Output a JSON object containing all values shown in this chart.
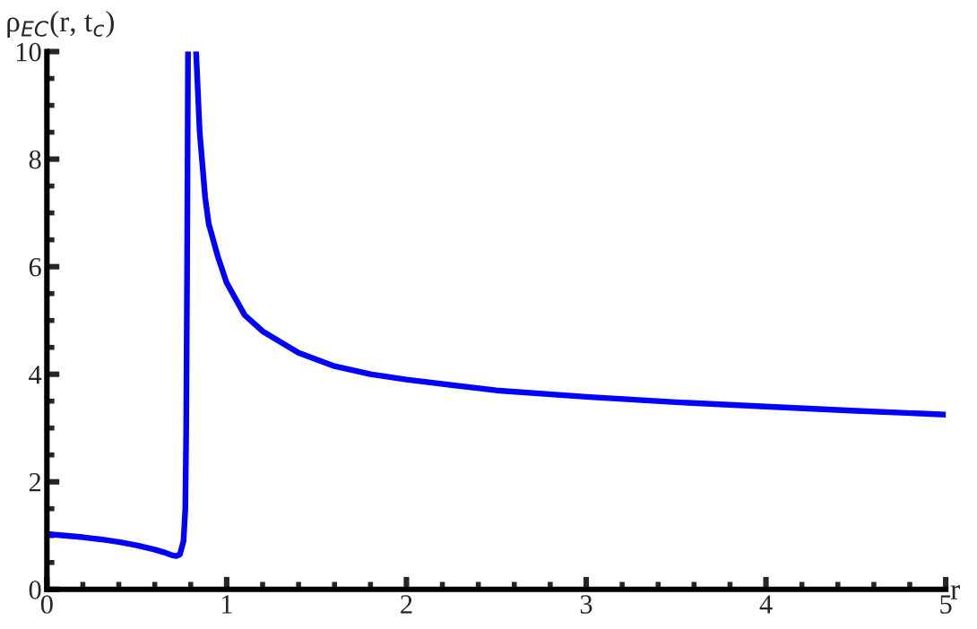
{
  "chart_data": {
    "type": "line",
    "ylabel": "ρ$_{EC}$(r, t$_{c}$)",
    "xlabel": "r",
    "x": [
      0,
      0.1,
      0.2,
      0.3,
      0.4,
      0.5,
      0.6,
      0.65,
      0.7,
      0.72,
      0.74,
      0.76,
      0.77,
      0.775,
      0.78,
      0.785,
      0.81,
      0.83,
      0.85,
      0.88,
      0.9,
      0.95,
      1.0,
      1.1,
      1.2,
      1.4,
      1.6,
      1.8,
      2,
      2.5,
      3,
      3.5,
      4,
      4.5,
      5
    ],
    "series": [
      {
        "color": "#0000ff",
        "values": [
          1.03,
          1.0,
          0.97,
          0.93,
          0.88,
          0.82,
          0.74,
          0.69,
          0.63,
          0.62,
          0.65,
          0.9,
          1.5,
          3,
          6,
          10,
          null,
          10,
          8.5,
          7.3,
          6.8,
          6.2,
          5.7,
          5.1,
          4.8,
          4.4,
          4.15,
          4.0,
          3.9,
          3.7,
          3.58,
          3.48,
          3.4,
          3.32,
          3.25
        ]
      }
    ],
    "xlim": [
      0,
      5
    ],
    "ylim": [
      0,
      10
    ],
    "xticks": [
      0,
      1,
      2,
      3,
      4,
      5
    ],
    "yticks": [
      0,
      2,
      4,
      6,
      8,
      10
    ],
    "grid": false,
    "legend": false,
    "line_style": "solid",
    "marker": "none"
  }
}
